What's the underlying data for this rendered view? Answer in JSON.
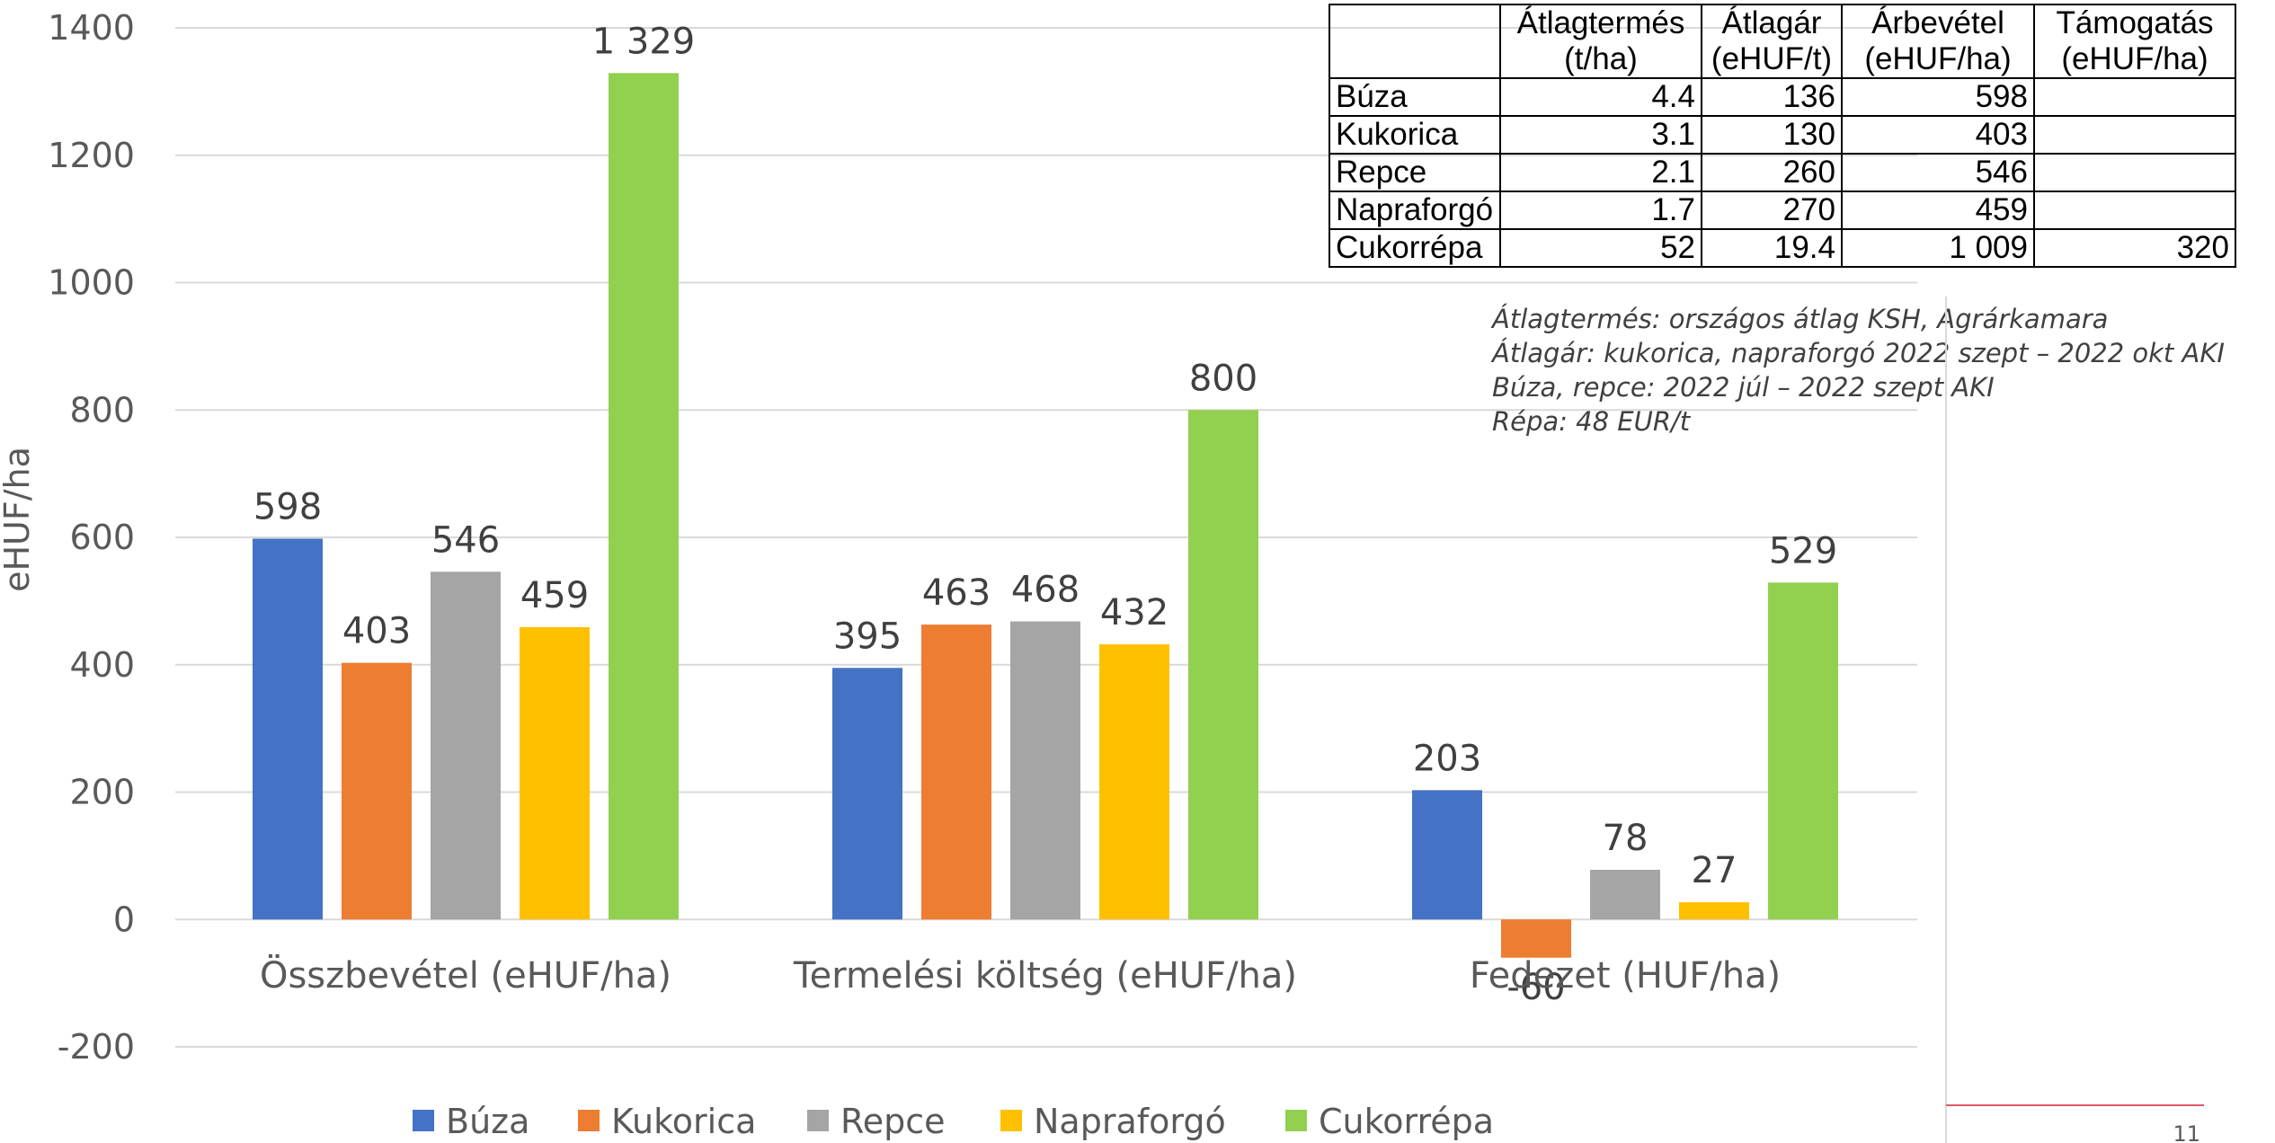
{
  "chart_data": {
    "type": "bar",
    "categories": [
      "Összbevétel (eHUF/ha)",
      "Termelési költség (eHUF/ha)",
      "Fedezet (HUF/ha)"
    ],
    "series": [
      {
        "name": "Búza",
        "color": "#4472C4",
        "values": [
          598,
          395,
          203
        ],
        "labels": [
          "598",
          "395",
          "203"
        ]
      },
      {
        "name": "Kukorica",
        "color": "#ED7D31",
        "values": [
          403,
          463,
          -60
        ],
        "labels": [
          "403",
          "463",
          "-60"
        ]
      },
      {
        "name": "Repce",
        "color": "#A5A5A5",
        "values": [
          546,
          468,
          78
        ],
        "labels": [
          "546",
          "468",
          "78"
        ]
      },
      {
        "name": "Napraforgó",
        "color": "#FFC000",
        "values": [
          459,
          432,
          27
        ],
        "labels": [
          "459",
          "432",
          "27"
        ]
      },
      {
        "name": "Cukorrépa",
        "color": "#92D050",
        "values": [
          1329,
          800,
          529
        ],
        "labels": [
          "1 329",
          "800",
          "529"
        ]
      }
    ],
    "ylabel": "eHUF/ha",
    "ylim": [
      -200,
      1400
    ],
    "yticks": [
      1400,
      1200,
      1000,
      800,
      600,
      400,
      200,
      0,
      -200
    ],
    "grid": true,
    "legend_position": "bottom"
  },
  "table": {
    "headers": [
      [
        "",
        ""
      ],
      [
        "Átlagtermés",
        "(t/ha)"
      ],
      [
        "Átlagár",
        "(eHUF/t)"
      ],
      [
        "Árbevétel",
        "(eHUF/ha)"
      ],
      [
        "Támogatás",
        "(eHUF/ha)"
      ]
    ],
    "rows": [
      [
        "Búza",
        "4.4",
        "136",
        "598",
        ""
      ],
      [
        "Kukorica",
        "3.1",
        "130",
        "403",
        ""
      ],
      [
        "Repce",
        "2.1",
        "260",
        "546",
        ""
      ],
      [
        "Napraforgó",
        "1.7",
        "270",
        "459",
        ""
      ],
      [
        "Cukorrépa",
        "52",
        "19.4",
        "1 009",
        "320"
      ]
    ]
  },
  "notes": [
    "Átlagtermés: országos átlag KSH, Agrárkamara",
    "Átlagár: kukorica, napraforgó 2022 szept – 2022 okt AKI",
    "Búza, repce: 2022 júl – 2022 szept AKI",
    "Répa: 48 EUR/t"
  ],
  "page_number": "11",
  "colors": {
    "gridline": "#D9D9D9",
    "divider": "#D9D9D9",
    "accent_line": "#E05A6A"
  }
}
